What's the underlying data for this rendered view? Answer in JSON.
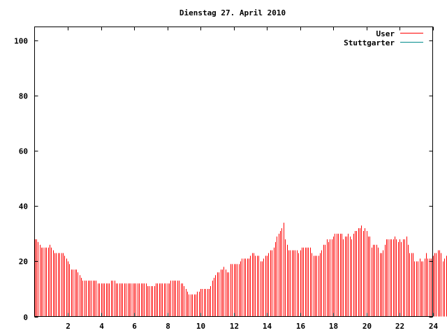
{
  "chart_data": {
    "type": "bar",
    "title": "Dienstag 27. April 2010",
    "xlabel": "",
    "ylabel": "",
    "xlim": [
      0,
      24
    ],
    "ylim": [
      0,
      105
    ],
    "x_ticks": [
      "2",
      "4",
      "6",
      "8",
      "10",
      "12",
      "14",
      "16",
      "18",
      "20",
      "22",
      "24"
    ],
    "y_ticks": [
      "0",
      "20",
      "40",
      "60",
      "80",
      "100"
    ],
    "grid": false,
    "legend_position": "top-right",
    "bar_interval_hours": 0.1,
    "series": [
      {
        "name": "User",
        "color": "#ff0000",
        "values": [
          28,
          28,
          27,
          26,
          25,
          25,
          25,
          25,
          25,
          26,
          25,
          24,
          23,
          23,
          23,
          23,
          23,
          23,
          22,
          21,
          20,
          19,
          17,
          17,
          17,
          17,
          16,
          15,
          14,
          13,
          13,
          13,
          13,
          13,
          13,
          13,
          13,
          13,
          12,
          12,
          12,
          12,
          12,
          12,
          12,
          12,
          13,
          13,
          13,
          12,
          12,
          12,
          12,
          12,
          12,
          12,
          12,
          12,
          12,
          12,
          12,
          12,
          12,
          12,
          12,
          12,
          12,
          12,
          11,
          11,
          11,
          11,
          11,
          12,
          12,
          12,
          12,
          12,
          12,
          12,
          12,
          12,
          13,
          13,
          13,
          13,
          13,
          13,
          12,
          12,
          11,
          10,
          9,
          8,
          8,
          8,
          8,
          8,
          9,
          9,
          10,
          10,
          10,
          10,
          10,
          10,
          11,
          13,
          14,
          15,
          16,
          16,
          17,
          17,
          18,
          17,
          16,
          16,
          19,
          19,
          19,
          19,
          19,
          19,
          20,
          21,
          21,
          21,
          21,
          21,
          22,
          23,
          23,
          22,
          22,
          22,
          20,
          20,
          21,
          22,
          22,
          23,
          24,
          24,
          25,
          27,
          29,
          30,
          31,
          32,
          34,
          28,
          26,
          24,
          24,
          24,
          24,
          24,
          24,
          23,
          24,
          25,
          25,
          25,
          25,
          25,
          25,
          23,
          22,
          22,
          22,
          22,
          23,
          24,
          26,
          26,
          28,
          27,
          28,
          28,
          29,
          30,
          30,
          30,
          30,
          30,
          28,
          29,
          29,
          30,
          29,
          28,
          30,
          31,
          31,
          32,
          32,
          33,
          31,
          32,
          31,
          29,
          29,
          25,
          26,
          26,
          26,
          25,
          23,
          23,
          24,
          26,
          28,
          28,
          28,
          28,
          28,
          29,
          28,
          27,
          28,
          27,
          28,
          28,
          29,
          26,
          23,
          23,
          23,
          20,
          20,
          20,
          21,
          20,
          20,
          21,
          23,
          21,
          21,
          21,
          22,
          23,
          23,
          24,
          24,
          23,
          20,
          21,
          22,
          23,
          24,
          24,
          25,
          24,
          24,
          25,
          26,
          27,
          27,
          27,
          28,
          29,
          26,
          27,
          28,
          28,
          29,
          28,
          29,
          29,
          29,
          28,
          29,
          31,
          31,
          30,
          30,
          30,
          31,
          31,
          31,
          31,
          32,
          34,
          35,
          35,
          35,
          34,
          35,
          35,
          36,
          32,
          30,
          29,
          29,
          31,
          32,
          32,
          33,
          34,
          34,
          34,
          34,
          35,
          38,
          37,
          37,
          35,
          34,
          33,
          31,
          29,
          29,
          29,
          29,
          29,
          27
        ]
      },
      {
        "name": "Stuttgarter",
        "color": "#008b8b",
        "values": []
      }
    ]
  }
}
